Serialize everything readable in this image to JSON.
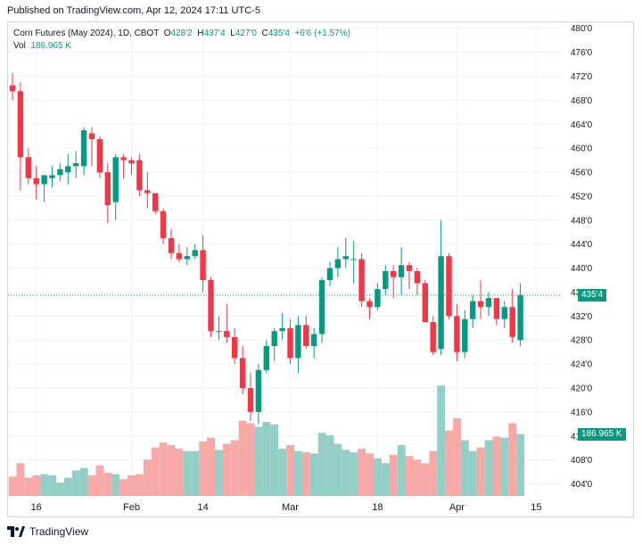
{
  "header": {
    "published": "Published on TradingView.com, Apr 12, 2024 17:11 UTC-5"
  },
  "legend": {
    "symbol": "Corn Futures (May 2024), 1D, CBOT",
    "o_label": "O",
    "o_value": "428'2",
    "h_label": "H",
    "h_value": "437'4",
    "l_label": "L",
    "l_value": "427'0",
    "c_label": "C",
    "c_value": "435'4",
    "change": "+6'6 (+1.57%)",
    "vol_label": "Vol",
    "vol_value": "186.965 K"
  },
  "price_tag": "435'4",
  "volume_tag": "186.965 K",
  "footer": {
    "brand": "TradingView"
  },
  "colors": {
    "up": "#089981",
    "down": "#f23645",
    "vol_up": "#93cfc6",
    "vol_down": "#f7a9a7",
    "grid": "#f0f3fa"
  },
  "chart_data": {
    "type": "candlestick",
    "y_axis": {
      "range": [
        402,
        481
      ],
      "ticks": [
        "480'0",
        "476'0",
        "472'0",
        "468'0",
        "464'0",
        "460'0",
        "456'0",
        "452'0",
        "448'0",
        "444'0",
        "440'0",
        "436'0",
        "432'0",
        "428'0",
        "424'0",
        "420'0",
        "416'0",
        "412'0",
        "408'0",
        "404'0"
      ]
    },
    "x_axis": {
      "ticks": [
        {
          "label": "16",
          "index": 3
        },
        {
          "label": "Feb",
          "index": 15
        },
        {
          "label": "14",
          "index": 24
        },
        {
          "label": "Mar",
          "index": 35
        },
        {
          "label": "18",
          "index": 46
        },
        {
          "label": "Apr",
          "index": 56
        },
        {
          "label": "15",
          "index": 66
        }
      ]
    },
    "last_price": 435.5,
    "candles": [
      {
        "o": 470.5,
        "h": 472.5,
        "l": 468.0,
        "c": 469.5,
        "v": 3.2
      },
      {
        "o": 469.5,
        "h": 471.0,
        "l": 453.0,
        "c": 458.5,
        "v": 5.4
      },
      {
        "o": 458.5,
        "h": 460.0,
        "l": 454.0,
        "c": 455.0,
        "v": 3.0
      },
      {
        "o": 455.0,
        "h": 457.0,
        "l": 451.5,
        "c": 454.0,
        "v": 3.4
      },
      {
        "o": 454.0,
        "h": 455.5,
        "l": 451.0,
        "c": 455.5,
        "v": 3.6
      },
      {
        "o": 455.0,
        "h": 457.0,
        "l": 453.5,
        "c": 455.5,
        "v": 3.4
      },
      {
        "o": 455.5,
        "h": 457.5,
        "l": 454.5,
        "c": 456.5,
        "v": 2.2
      },
      {
        "o": 456.0,
        "h": 459.0,
        "l": 454.0,
        "c": 457.0,
        "v": 3.0
      },
      {
        "o": 457.0,
        "h": 459.5,
        "l": 455.0,
        "c": 457.5,
        "v": 4.2
      },
      {
        "o": 457.0,
        "h": 463.5,
        "l": 455.5,
        "c": 463.0,
        "v": 4.6
      },
      {
        "o": 462.5,
        "h": 463.5,
        "l": 457.0,
        "c": 461.5,
        "v": 3.4
      },
      {
        "o": 461.5,
        "h": 462.0,
        "l": 455.0,
        "c": 456.0,
        "v": 5.0
      },
      {
        "o": 456.0,
        "h": 457.5,
        "l": 447.5,
        "c": 450.5,
        "v": 3.8
      },
      {
        "o": 451.0,
        "h": 459.0,
        "l": 448.0,
        "c": 458.5,
        "v": 3.6
      },
      {
        "o": 458.5,
        "h": 459.0,
        "l": 455.0,
        "c": 458.0,
        "v": 2.8
      },
      {
        "o": 458.0,
        "h": 458.5,
        "l": 455.5,
        "c": 457.5,
        "v": 3.4
      },
      {
        "o": 458.0,
        "h": 459.0,
        "l": 452.0,
        "c": 453.0,
        "v": 3.6
      },
      {
        "o": 453.0,
        "h": 456.0,
        "l": 450.0,
        "c": 452.5,
        "v": 6.0
      },
      {
        "o": 452.5,
        "h": 452.5,
        "l": 449.0,
        "c": 449.5,
        "v": 8.0
      },
      {
        "o": 449.5,
        "h": 450.0,
        "l": 444.0,
        "c": 445.0,
        "v": 8.8
      },
      {
        "o": 445.0,
        "h": 446.5,
        "l": 441.5,
        "c": 442.5,
        "v": 8.4
      },
      {
        "o": 442.5,
        "h": 444.0,
        "l": 441.0,
        "c": 441.5,
        "v": 7.8
      },
      {
        "o": 441.5,
        "h": 443.5,
        "l": 440.5,
        "c": 442.0,
        "v": 7.4
      },
      {
        "o": 442.0,
        "h": 444.0,
        "l": 441.5,
        "c": 443.0,
        "v": 7.4
      },
      {
        "o": 443.0,
        "h": 445.5,
        "l": 436.0,
        "c": 438.0,
        "v": 9.0
      },
      {
        "o": 438.0,
        "h": 438.5,
        "l": 428.5,
        "c": 429.5,
        "v": 9.6
      },
      {
        "o": 429.5,
        "h": 432.0,
        "l": 428.0,
        "c": 429.5,
        "v": 7.6
      },
      {
        "o": 429.5,
        "h": 434.0,
        "l": 427.5,
        "c": 428.5,
        "v": 8.6
      },
      {
        "o": 428.5,
        "h": 430.0,
        "l": 424.0,
        "c": 425.0,
        "v": 9.2
      },
      {
        "o": 425.0,
        "h": 427.0,
        "l": 419.0,
        "c": 420.0,
        "v": 12.4
      },
      {
        "o": 420.0,
        "h": 422.5,
        "l": 414.5,
        "c": 416.0,
        "v": 12.0
      },
      {
        "o": 416.0,
        "h": 424.0,
        "l": 414.0,
        "c": 423.0,
        "v": 11.4
      },
      {
        "o": 423.0,
        "h": 428.0,
        "l": 422.5,
        "c": 427.0,
        "v": 12.2
      },
      {
        "o": 427.0,
        "h": 430.0,
        "l": 424.5,
        "c": 429.5,
        "v": 11.8
      },
      {
        "o": 429.5,
        "h": 432.5,
        "l": 428.0,
        "c": 430.0,
        "v": 7.8
      },
      {
        "o": 430.0,
        "h": 431.5,
        "l": 424.0,
        "c": 425.0,
        "v": 8.4
      },
      {
        "o": 425.0,
        "h": 432.0,
        "l": 422.5,
        "c": 430.5,
        "v": 7.4
      },
      {
        "o": 430.5,
        "h": 432.0,
        "l": 426.5,
        "c": 427.0,
        "v": 7.2
      },
      {
        "o": 427.0,
        "h": 430.0,
        "l": 425.0,
        "c": 429.0,
        "v": 7.0
      },
      {
        "o": 429.0,
        "h": 438.5,
        "l": 427.5,
        "c": 438.0,
        "v": 10.4
      },
      {
        "o": 438.0,
        "h": 441.0,
        "l": 437.0,
        "c": 440.0,
        "v": 10.0
      },
      {
        "o": 440.0,
        "h": 443.5,
        "l": 438.5,
        "c": 441.5,
        "v": 8.6
      },
      {
        "o": 441.5,
        "h": 445.0,
        "l": 440.0,
        "c": 442.0,
        "v": 7.6
      },
      {
        "o": 441.5,
        "h": 444.5,
        "l": 437.5,
        "c": 441.5,
        "v": 7.2
      },
      {
        "o": 441.5,
        "h": 442.5,
        "l": 433.5,
        "c": 434.5,
        "v": 7.8
      },
      {
        "o": 434.5,
        "h": 435.0,
        "l": 431.5,
        "c": 433.5,
        "v": 7.0
      },
      {
        "o": 433.5,
        "h": 437.5,
        "l": 433.0,
        "c": 436.5,
        "v": 6.2
      },
      {
        "o": 436.5,
        "h": 440.5,
        "l": 435.5,
        "c": 439.5,
        "v": 5.4
      },
      {
        "o": 439.5,
        "h": 440.5,
        "l": 435.0,
        "c": 438.5,
        "v": 6.8
      },
      {
        "o": 438.5,
        "h": 443.5,
        "l": 435.5,
        "c": 440.5,
        "v": 8.4
      },
      {
        "o": 440.5,
        "h": 441.0,
        "l": 436.5,
        "c": 439.5,
        "v": 6.6
      },
      {
        "o": 439.5,
        "h": 440.0,
        "l": 435.5,
        "c": 437.5,
        "v": 6.0
      },
      {
        "o": 437.5,
        "h": 438.0,
        "l": 431.0,
        "c": 431.0,
        "v": 5.4
      },
      {
        "o": 431.0,
        "h": 432.0,
        "l": 425.5,
        "c": 426.0,
        "v": 7.4
      },
      {
        "o": 426.5,
        "h": 448.0,
        "l": 425.5,
        "c": 442.0,
        "v": 18.2
      },
      {
        "o": 442.0,
        "h": 442.5,
        "l": 431.5,
        "c": 432.0,
        "v": 10.8
      },
      {
        "o": 432.0,
        "h": 434.0,
        "l": 424.5,
        "c": 426.0,
        "v": 12.8
      },
      {
        "o": 426.0,
        "h": 433.0,
        "l": 425.0,
        "c": 431.5,
        "v": 9.2
      },
      {
        "o": 431.5,
        "h": 435.5,
        "l": 430.0,
        "c": 434.5,
        "v": 7.4
      },
      {
        "o": 434.5,
        "h": 438.0,
        "l": 431.5,
        "c": 433.5,
        "v": 8.0
      },
      {
        "o": 433.5,
        "h": 436.0,
        "l": 432.0,
        "c": 435.0,
        "v": 9.2
      },
      {
        "o": 435.0,
        "h": 435.0,
        "l": 430.5,
        "c": 431.5,
        "v": 9.8
      },
      {
        "o": 431.5,
        "h": 434.5,
        "l": 430.0,
        "c": 433.5,
        "v": 9.6
      },
      {
        "o": 433.5,
        "h": 436.5,
        "l": 427.5,
        "c": 428.5,
        "v": 12.0
      },
      {
        "o": 428.0,
        "h": 437.5,
        "l": 427.0,
        "c": 435.5,
        "v": 10.2
      }
    ]
  }
}
